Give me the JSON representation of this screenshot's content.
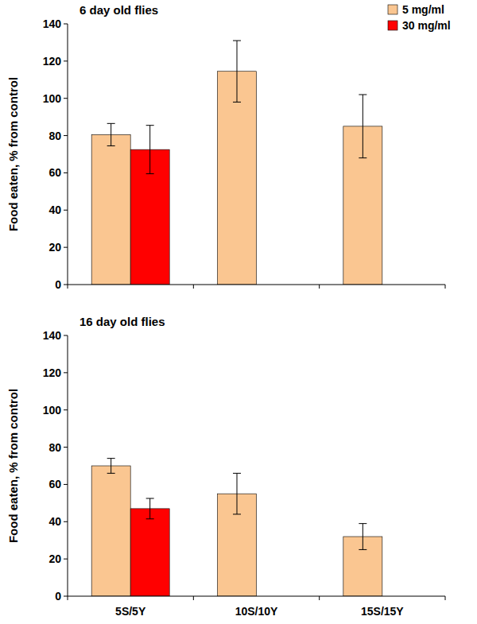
{
  "chart_data": [
    {
      "type": "bar",
      "title": "6 day old flies",
      "y_label": "Food eaten, % from control",
      "categories": [
        "5S/5Y",
        "10S/10Y",
        "15S/15Y"
      ],
      "series": [
        {
          "name": "5 mg/ml",
          "color": "#fac691",
          "values": [
            80.5,
            114.5,
            85
          ],
          "errors": [
            6,
            16.5,
            17
          ]
        },
        {
          "name": "30 mg/ml",
          "color": "#ff0000",
          "values": [
            72.5,
            null,
            null
          ],
          "errors": [
            13,
            null,
            null
          ]
        }
      ],
      "ylim": [
        0,
        140
      ],
      "yticks": [
        0,
        20,
        40,
        60,
        80,
        100,
        120,
        140
      ],
      "grid": false,
      "legend": "top-right",
      "tick_labels": "y"
    },
    {
      "type": "bar",
      "title": "16 day old flies",
      "y_label": "Food eaten, % from control",
      "categories": [
        "5S/5Y",
        "10S/10Y",
        "15S/15Y"
      ],
      "series": [
        {
          "color": "#fac691",
          "values": [
            70,
            55,
            32
          ],
          "errors": [
            4,
            11,
            7
          ]
        },
        {
          "color": "#ff0000",
          "values": [
            47,
            null,
            null
          ],
          "errors": [
            5.5,
            null,
            null
          ]
        }
      ],
      "ylim": [
        0,
        140
      ],
      "yticks": [
        0,
        20,
        40,
        60,
        80,
        100,
        120,
        140
      ],
      "grid": false
    }
  ]
}
